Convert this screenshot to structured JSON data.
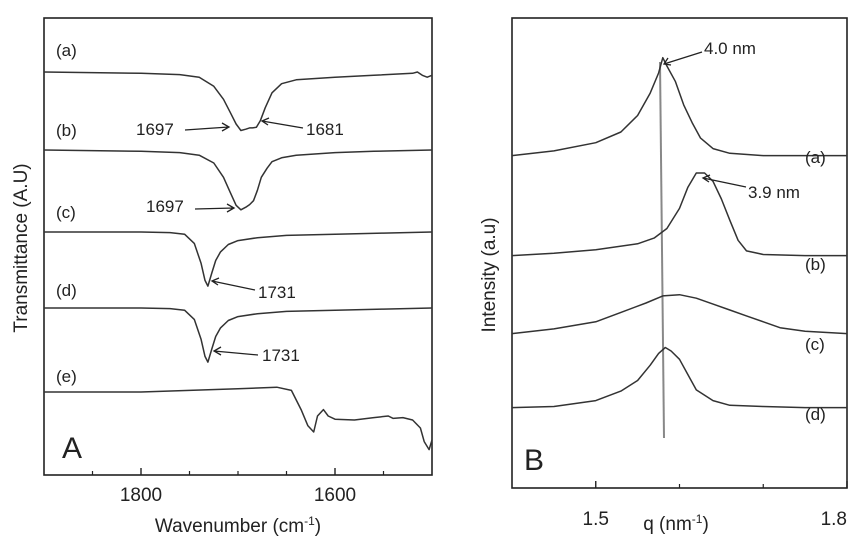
{
  "chart_data": [
    {
      "panel": "A",
      "type": "line",
      "xlabel_base": "Wavenumber (cm",
      "xlabel_sup": "-1",
      "xlabel_close": ")",
      "ylabel": "Transmittance (A.U)",
      "xlim": [
        1900,
        1500
      ],
      "xticks": [
        1800,
        1600
      ],
      "series": [
        {
          "name": "(a)",
          "x": [
            1900,
            1800,
            1760,
            1740,
            1725,
            1715,
            1708,
            1702,
            1697,
            1692,
            1688,
            1685,
            1681,
            1677,
            1672,
            1665,
            1655,
            1640,
            1600,
            1560,
            1520,
            1515,
            1510,
            1505,
            1500
          ],
          "y": [
            0,
            -0.02,
            -0.04,
            -0.08,
            -0.22,
            -0.42,
            -0.62,
            -0.8,
            -0.9,
            -0.88,
            -0.86,
            -0.86,
            -0.85,
            -0.75,
            -0.55,
            -0.32,
            -0.18,
            -0.12,
            -0.08,
            -0.05,
            -0.02,
            0.0,
            -0.05,
            -0.08,
            -0.05
          ]
        },
        {
          "name": "(b)",
          "x": [
            1900,
            1800,
            1760,
            1740,
            1725,
            1715,
            1708,
            1702,
            1697,
            1692,
            1688,
            1684,
            1680,
            1676,
            1670,
            1665,
            1655,
            1640,
            1600,
            1560,
            1500
          ],
          "y": [
            0,
            -0.02,
            -0.04,
            -0.08,
            -0.2,
            -0.42,
            -0.65,
            -0.85,
            -0.92,
            -0.88,
            -0.84,
            -0.78,
            -0.62,
            -0.42,
            -0.28,
            -0.18,
            -0.12,
            -0.08,
            -0.04,
            -0.02,
            0.0
          ]
        },
        {
          "name": "(c)",
          "x": [
            1900,
            1800,
            1770,
            1755,
            1745,
            1738,
            1734,
            1731,
            1727,
            1723,
            1718,
            1710,
            1700,
            1680,
            1650,
            1600,
            1550,
            1500
          ],
          "y": [
            0,
            0.0,
            -0.01,
            -0.04,
            -0.2,
            -0.55,
            -0.85,
            -0.95,
            -0.72,
            -0.5,
            -0.35,
            -0.22,
            -0.15,
            -0.1,
            -0.06,
            -0.04,
            -0.02,
            0.0
          ]
        },
        {
          "name": "(d)",
          "x": [
            1900,
            1800,
            1770,
            1755,
            1745,
            1738,
            1734,
            1731,
            1727,
            1723,
            1718,
            1710,
            1700,
            1680,
            1650,
            1600,
            1550,
            1500
          ],
          "y": [
            0,
            0.0,
            -0.01,
            -0.04,
            -0.2,
            -0.55,
            -0.85,
            -0.95,
            -0.72,
            -0.5,
            -0.35,
            -0.22,
            -0.15,
            -0.1,
            -0.06,
            -0.04,
            -0.02,
            0.0
          ]
        },
        {
          "name": "(e)",
          "x": [
            1900,
            1850,
            1800,
            1750,
            1700,
            1660,
            1645,
            1635,
            1628,
            1622,
            1618,
            1612,
            1607,
            1600,
            1580,
            1560,
            1545,
            1540,
            1530,
            1520,
            1512,
            1508,
            1503,
            1500
          ],
          "y": [
            0,
            0.0,
            0.0,
            0.02,
            0.04,
            0.06,
            0.02,
            -0.22,
            -0.42,
            -0.5,
            -0.3,
            -0.22,
            -0.3,
            -0.34,
            -0.35,
            -0.32,
            -0.3,
            -0.33,
            -0.32,
            -0.35,
            -0.45,
            -0.62,
            -0.72,
            -0.6
          ]
        }
      ],
      "annotations": [
        {
          "text": "1697",
          "target": "(a)"
        },
        {
          "text": "1681",
          "target": "(a)"
        },
        {
          "text": "1697",
          "target": "(b)"
        },
        {
          "text": "1731",
          "target": "(c)"
        },
        {
          "text": "1731",
          "target": "(d)"
        }
      ],
      "panel_label": "A"
    },
    {
      "panel": "B",
      "type": "line",
      "xlabel_base": "q (nm",
      "xlabel_sup": "-1",
      "xlabel_close": ")",
      "ylabel": "Intensity (a.u)",
      "xlim": [
        1.4,
        1.8
      ],
      "xticks": [
        1.5,
        1.8
      ],
      "xtick_labels": [
        "1.5",
        "1.8"
      ],
      "series": [
        {
          "name": "(a)",
          "x": [
            1.4,
            1.45,
            1.5,
            1.53,
            1.55,
            1.565,
            1.575,
            1.58,
            1.585,
            1.595,
            1.605,
            1.615,
            1.625,
            1.64,
            1.66,
            1.7,
            1.8
          ],
          "y": [
            0.02,
            0.06,
            0.13,
            0.22,
            0.36,
            0.55,
            0.72,
            0.85,
            0.78,
            0.65,
            0.45,
            0.3,
            0.17,
            0.08,
            0.04,
            0.02,
            0.02
          ]
        },
        {
          "name": "(b)",
          "x": [
            1.4,
            1.45,
            1.5,
            1.55,
            1.57,
            1.585,
            1.6,
            1.61,
            1.62,
            1.63,
            1.64,
            1.65,
            1.66,
            1.67,
            1.68,
            1.7,
            1.75,
            1.8
          ],
          "y": [
            0.02,
            0.04,
            0.07,
            0.12,
            0.17,
            0.25,
            0.42,
            0.6,
            0.72,
            0.72,
            0.65,
            0.5,
            0.32,
            0.15,
            0.06,
            0.03,
            0.02,
            0.02
          ]
        },
        {
          "name": "(c)",
          "x": [
            1.4,
            1.45,
            1.5,
            1.53,
            1.56,
            1.58,
            1.6,
            1.62,
            1.64,
            1.66,
            1.68,
            1.7,
            1.72,
            1.75,
            1.8
          ],
          "y": [
            0.02,
            0.06,
            0.12,
            0.2,
            0.28,
            0.34,
            0.35,
            0.32,
            0.27,
            0.22,
            0.17,
            0.12,
            0.07,
            0.04,
            0.02
          ]
        },
        {
          "name": "(d)",
          "x": [
            1.4,
            1.45,
            1.5,
            1.53,
            1.55,
            1.565,
            1.575,
            1.583,
            1.59,
            1.6,
            1.61,
            1.62,
            1.64,
            1.66,
            1.7,
            1.75,
            1.8
          ],
          "y": [
            0.02,
            0.03,
            0.08,
            0.16,
            0.25,
            0.38,
            0.48,
            0.53,
            0.5,
            0.43,
            0.3,
            0.17,
            0.08,
            0.04,
            0.03,
            0.02,
            0.02
          ]
        }
      ],
      "annotations": [
        {
          "text": "4.0 nm",
          "target": "(a)"
        },
        {
          "text": "3.9 nm",
          "target": "(b)"
        }
      ],
      "panel_label": "B"
    }
  ]
}
